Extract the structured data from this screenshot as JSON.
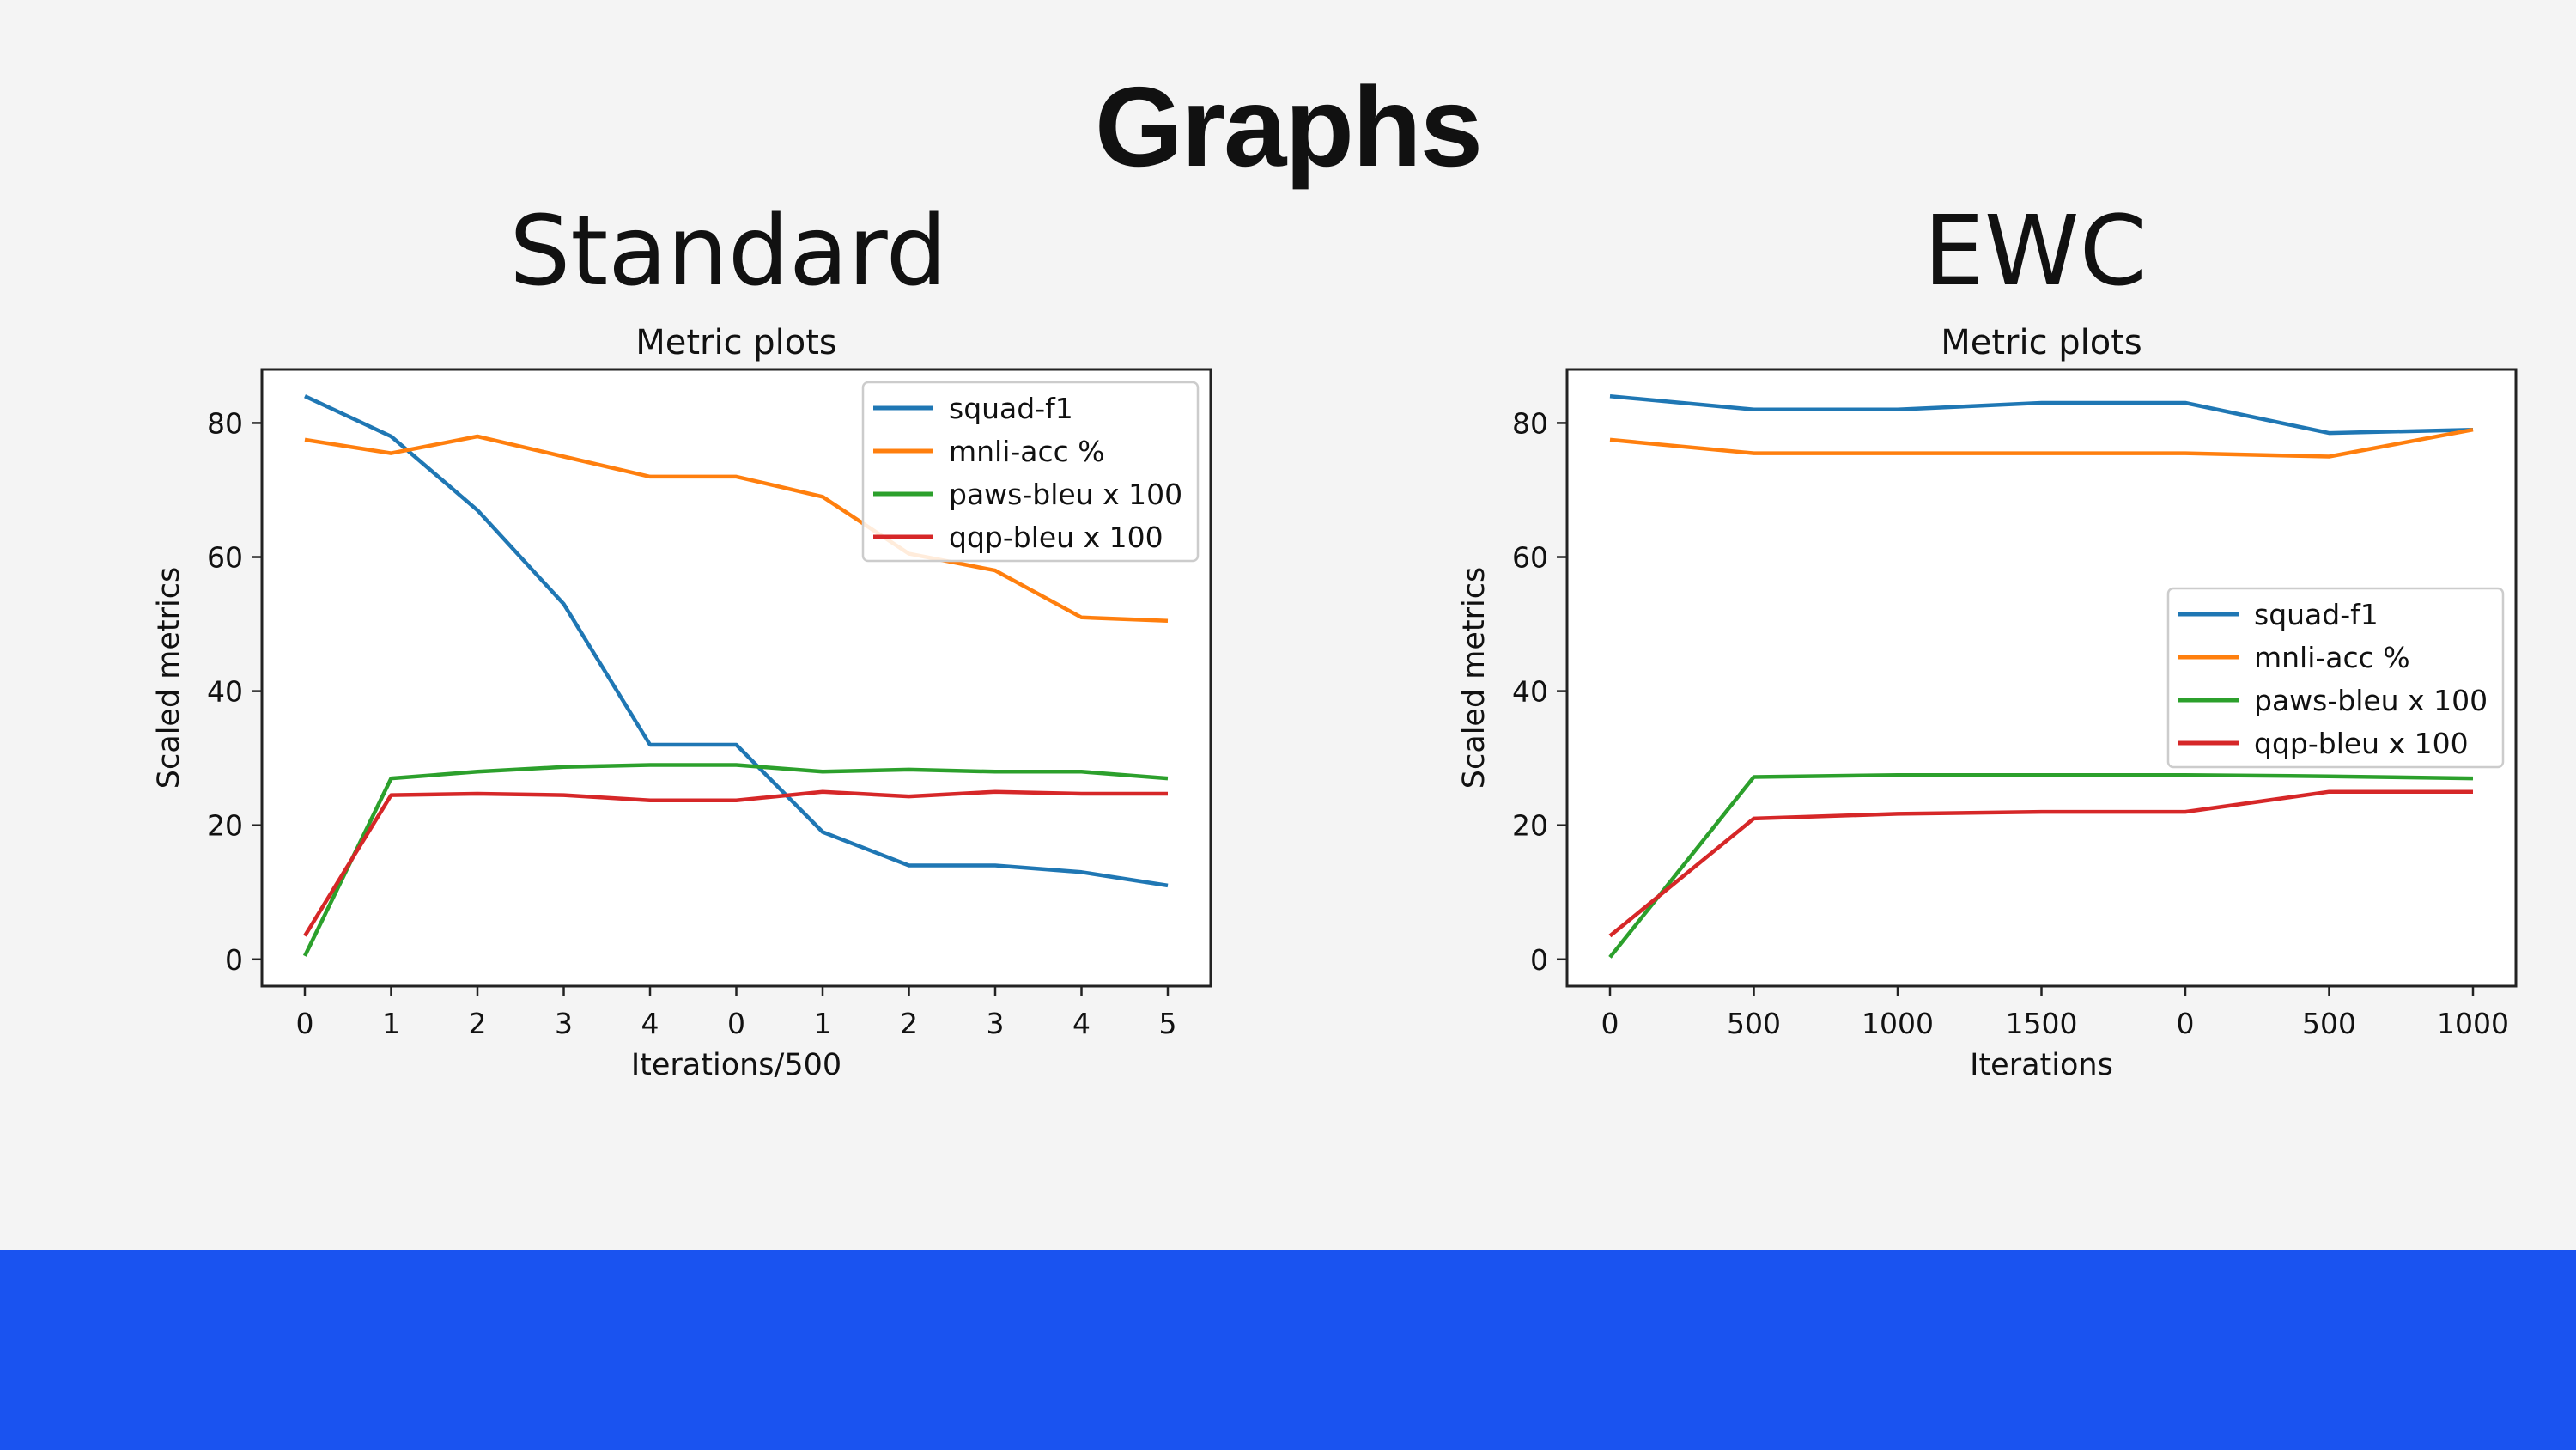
{
  "slide": {
    "title": "Graphs",
    "footer_color": "#1a53f0",
    "background": "#f4f4f4"
  },
  "panels": [
    {
      "heading": "Standard"
    },
    {
      "heading": "EWC"
    }
  ],
  "chart_data": [
    {
      "type": "line",
      "title": "Metric plots",
      "xlabel": "Iterations/500",
      "ylabel": "Scaled metrics",
      "x_tick_labels": [
        "0",
        "1",
        "2",
        "3",
        "4",
        "0",
        "1",
        "2",
        "3",
        "4",
        "5"
      ],
      "ylim": [
        -4,
        88
      ],
      "y_ticks": [
        0,
        20,
        40,
        60,
        80
      ],
      "grid": false,
      "legend_position": "top-right",
      "series": [
        {
          "name": "squad-f1",
          "color": "#1f77b4",
          "values": [
            84,
            78,
            67,
            53,
            32,
            32,
            19,
            14,
            14,
            13,
            11
          ]
        },
        {
          "name": "mnli-acc %",
          "color": "#ff7f0e",
          "values": [
            77.5,
            75.5,
            78,
            75,
            72,
            72,
            69,
            60.5,
            58,
            51,
            50.5
          ]
        },
        {
          "name": "paws-bleu x 100",
          "color": "#2ca02c",
          "values": [
            0.5,
            27,
            28,
            28.7,
            29,
            29,
            28,
            28.3,
            28,
            28,
            27
          ]
        },
        {
          "name": "qqp-bleu x 100",
          "color": "#d62728",
          "values": [
            3.5,
            24.5,
            24.7,
            24.5,
            23.7,
            23.7,
            25,
            24.3,
            25,
            24.7,
            24.7
          ]
        }
      ]
    },
    {
      "type": "line",
      "title": "Metric plots",
      "xlabel": "Iterations",
      "ylabel": "Scaled metrics",
      "x_tick_labels": [
        "0",
        "500",
        "1000",
        "1500",
        "0",
        "500",
        "1000"
      ],
      "ylim": [
        -4,
        88
      ],
      "y_ticks": [
        0,
        20,
        40,
        60,
        80
      ],
      "grid": false,
      "legend_position": "center-right",
      "series": [
        {
          "name": "squad-f1",
          "color": "#1f77b4",
          "values": [
            84,
            82,
            82,
            83,
            83,
            78.5,
            79
          ]
        },
        {
          "name": "mnli-acc %",
          "color": "#ff7f0e",
          "values": [
            77.5,
            75.5,
            75.5,
            75.5,
            75.5,
            75,
            79
          ]
        },
        {
          "name": "paws-bleu x 100",
          "color": "#2ca02c",
          "values": [
            0.3,
            27.2,
            27.5,
            27.5,
            27.5,
            27.3,
            27
          ]
        },
        {
          "name": "qqp-bleu x 100",
          "color": "#d62728",
          "values": [
            3.5,
            21,
            21.7,
            22,
            22,
            25,
            25
          ]
        }
      ]
    }
  ]
}
